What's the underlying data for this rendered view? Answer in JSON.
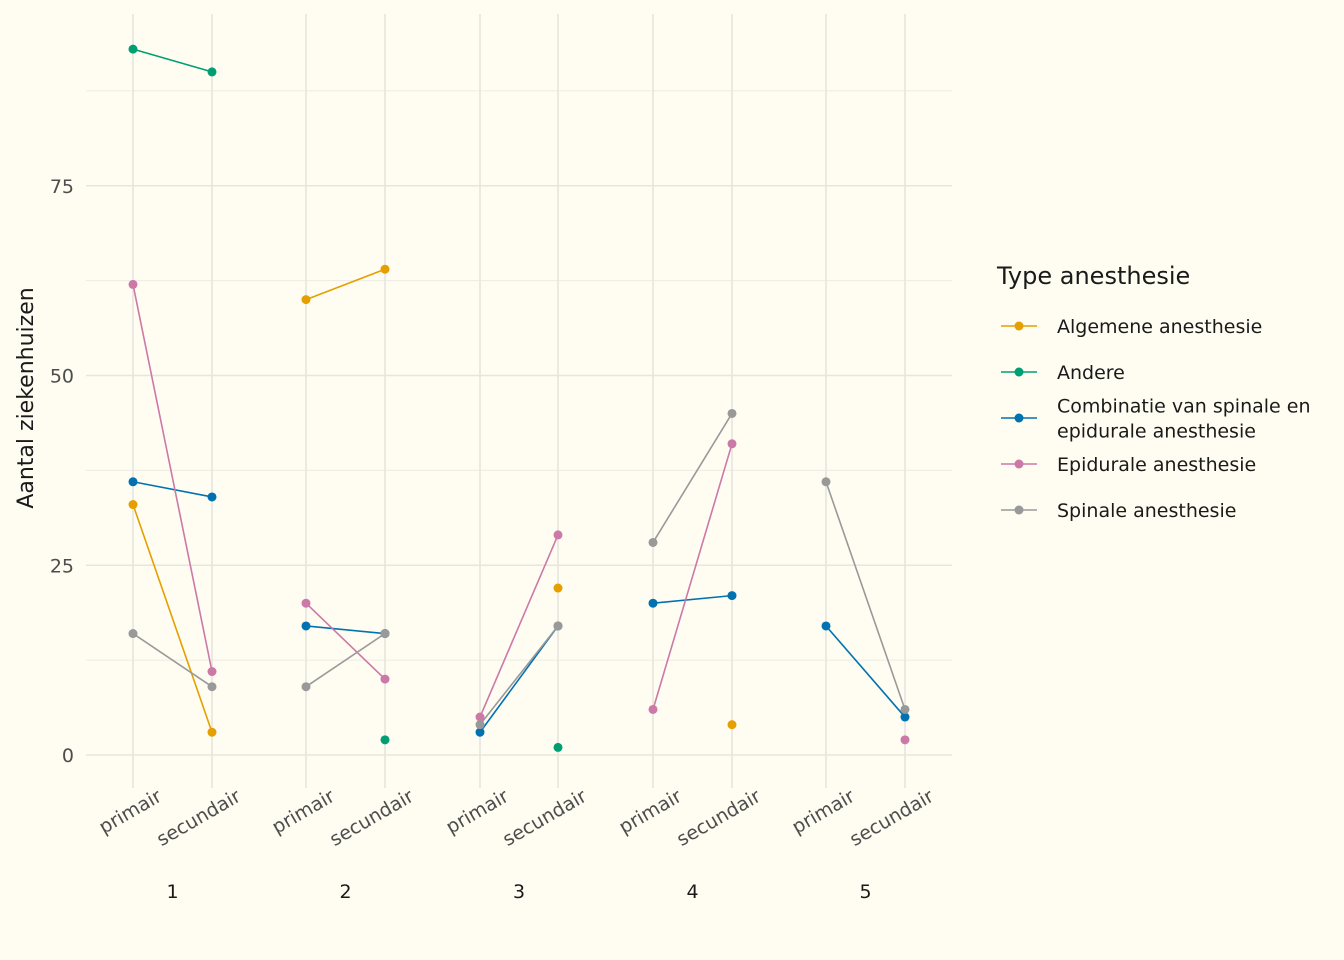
{
  "chart_data": {
    "type": "line",
    "ylabel": "Aantal ziekenhuizen",
    "y_ticks": [
      0,
      25,
      50,
      75
    ],
    "ylim": [
      -3,
      98
    ],
    "grid": true,
    "groups": [
      "1",
      "2",
      "3",
      "4",
      "5"
    ],
    "subcategories": [
      "primair",
      "secundair"
    ],
    "legend": {
      "title": "Type anesthesie",
      "placement": "right"
    },
    "series": [
      {
        "name": "Algemene anesthesie",
        "label_lines": [
          "Algemene anesthesie"
        ],
        "color": "#E69F00",
        "values": [
          [
            33,
            3
          ],
          [
            60,
            64
          ],
          [
            null,
            22
          ],
          [
            null,
            4
          ],
          [
            null,
            null
          ]
        ]
      },
      {
        "name": "Andere",
        "label_lines": [
          "Andere"
        ],
        "color": "#009E73",
        "values": [
          [
            93,
            90
          ],
          [
            null,
            2
          ],
          [
            null,
            1
          ],
          [
            null,
            null
          ],
          [
            null,
            null
          ]
        ]
      },
      {
        "name": "Combinatie van spinale en epidurale anesthesie",
        "label_lines": [
          "Combinatie van spinale en",
          "epidurale anesthesie"
        ],
        "color": "#0072B2",
        "values": [
          [
            36,
            34
          ],
          [
            17,
            16
          ],
          [
            3,
            17
          ],
          [
            20,
            21
          ],
          [
            17,
            5
          ]
        ]
      },
      {
        "name": "Epidurale anesthesie",
        "label_lines": [
          "Epidurale anesthesie"
        ],
        "color": "#CC79A7",
        "values": [
          [
            62,
            11
          ],
          [
            20,
            10
          ],
          [
            5,
            29
          ],
          [
            6,
            41
          ],
          [
            null,
            2
          ]
        ]
      },
      {
        "name": "Spinale anesthesie",
        "label_lines": [
          "Spinale anesthesie"
        ],
        "color": "#999999",
        "values": [
          [
            16,
            9
          ],
          [
            9,
            16
          ],
          [
            4,
            17
          ],
          [
            28,
            45
          ],
          [
            36,
            6
          ]
        ]
      }
    ]
  }
}
